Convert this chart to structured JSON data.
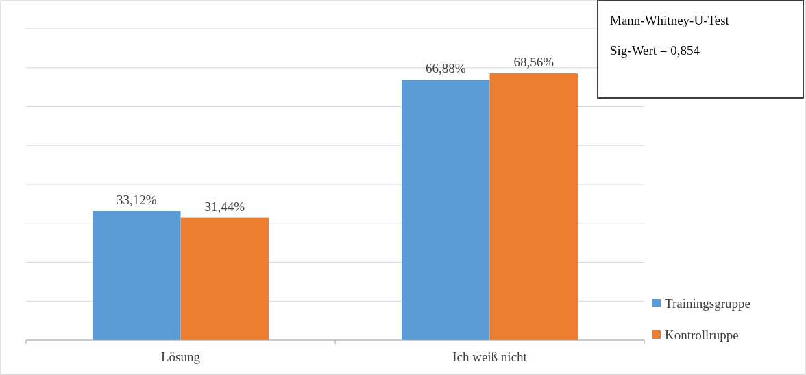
{
  "chart_data": {
    "type": "bar",
    "categories": [
      "Lösung",
      "Ich weiß nicht"
    ],
    "series": [
      {
        "name": "Trainingsgruppe",
        "color": "#5b9bd5",
        "values": [
          33.12,
          66.88
        ],
        "value_labels": [
          "33,12%",
          "66,88%"
        ]
      },
      {
        "name": "Kontrollruppe",
        "color": "#ed7d31",
        "values": [
          31.44,
          68.56
        ],
        "value_labels": [
          "31,44%",
          "68,56%"
        ]
      }
    ],
    "ylim": [
      0,
      80
    ],
    "yticks": [
      {
        "value": 0,
        "label": null
      },
      {
        "value": 10,
        "label": null
      },
      {
        "value": 20,
        "label": null
      },
      {
        "value": 30,
        "label": null
      },
      {
        "value": 40,
        "label": null
      },
      {
        "value": 50,
        "label": null
      },
      {
        "value": 60,
        "label": null
      },
      {
        "value": 70,
        "label": null
      },
      {
        "value": 80,
        "label": null
      }
    ],
    "grid": "y",
    "tick_labels": "x",
    "legend": "right",
    "annotations": [
      "Mann-Whitney-U-Test",
      "Sig-Wert = 0,854"
    ]
  }
}
